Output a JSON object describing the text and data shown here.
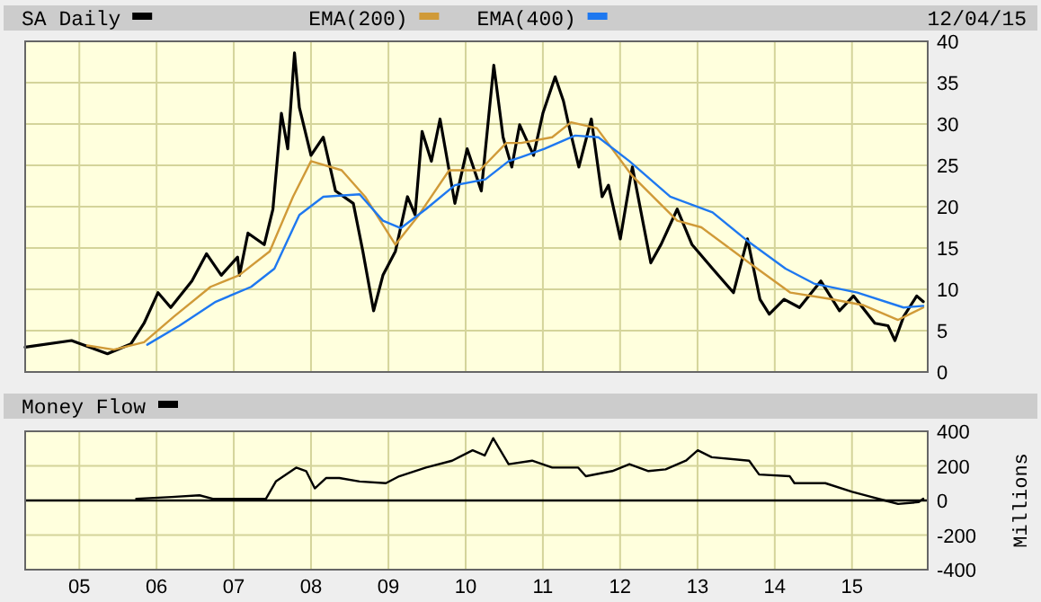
{
  "chart_data": [
    {
      "type": "line",
      "legend": "top",
      "grid": true,
      "tick_labels": "y",
      "marker": "none",
      "line_style": "solid",
      "annotations": [
        "12/04/15"
      ],
      "xlim": [
        "2004-04-20",
        "2015-12-25"
      ],
      "xticks": [
        {
          "value": "2005-01-01",
          "label": null
        },
        {
          "value": "2006-01-01",
          "label": null
        },
        {
          "value": "2007-01-01",
          "label": null
        },
        {
          "value": "2008-01-01",
          "label": null
        },
        {
          "value": "2009-01-01",
          "label": null
        },
        {
          "value": "2010-01-01",
          "label": null
        },
        {
          "value": "2011-01-01",
          "label": null
        },
        {
          "value": "2012-01-01",
          "label": null
        },
        {
          "value": "2013-01-01",
          "label": null
        },
        {
          "value": "2014-01-01",
          "label": null
        },
        {
          "value": "2015-01-01",
          "label": null
        }
      ],
      "ylim": [
        0,
        40
      ],
      "yticks": [
        0,
        5,
        10,
        15,
        20,
        25,
        30,
        35,
        40
      ],
      "series": [
        {
          "name": "SA Daily",
          "color": "#000000",
          "x": [
            "2004-04-20",
            "2004-11-25",
            "2005-05-14",
            "2005-09-02",
            "2005-11-03",
            "2006-01-08",
            "2006-03-09",
            "2006-06-17",
            "2006-08-25",
            "2006-11-03",
            "2007-01-19",
            "2007-01-28",
            "2007-03-09",
            "2007-05-25",
            "2007-07-05",
            "2007-08-14",
            "2007-09-13",
            "2007-10-15",
            "2007-11-07",
            "2008-01-01",
            "2008-02-28",
            "2008-04-26",
            "2008-07-19",
            "2008-09-02",
            "2008-10-23",
            "2008-12-06",
            "2009-02-03",
            "2009-04-01",
            "2009-05-07",
            "2009-06-09",
            "2009-07-23",
            "2009-09-02",
            "2009-11-11",
            "2010-01-08",
            "2010-03-16",
            "2010-05-14",
            "2010-06-27",
            "2010-08-07",
            "2010-09-13",
            "2010-11-18",
            "2011-01-01",
            "2011-02-28",
            "2011-04-08",
            "2011-05-03",
            "2011-06-20",
            "2011-08-18",
            "2011-10-08",
            "2011-11-07",
            "2012-01-02",
            "2012-02-28",
            "2012-05-25",
            "2012-07-12",
            "2012-09-27",
            "2012-12-06",
            "2013-03-13",
            "2013-06-20",
            "2013-08-25",
            "2013-10-23",
            "2013-12-06",
            "2014-02-14",
            "2014-04-28",
            "2014-08-07",
            "2014-11-03",
            "2015-01-08",
            "2015-04-19",
            "2015-06-20",
            "2015-07-23",
            "2015-09-02",
            "2015-11-03",
            "2015-12-04"
          ],
          "values": [
            3.0,
            3.8,
            2.2,
            3.4,
            5.9,
            9.6,
            7.8,
            11,
            14.3,
            11.7,
            13.9,
            11.7,
            16.8,
            15.4,
            19.7,
            31.3,
            27,
            38.6,
            32,
            26.2,
            28.4,
            21.9,
            20.4,
            14.6,
            7.4,
            11.7,
            14.6,
            21.2,
            19,
            29.1,
            25.5,
            30.6,
            20.4,
            27,
            21.9,
            37.1,
            28.4,
            24.8,
            29.9,
            26.2,
            31.3,
            35.7,
            32.8,
            29.9,
            24.8,
            30.6,
            21.2,
            22.6,
            16.1,
            24.8,
            13.2,
            15.4,
            19.7,
            15.4,
            12.5,
            9.6,
            16.1,
            8.8,
            7,
            8.8,
            7.8,
            11,
            7.4,
            9.2,
            5.9,
            5.6,
            3.8,
            6.7,
            9.2,
            8.5
          ]
        },
        {
          "name": "EMA(200)",
          "color": "#d09a38",
          "x": [
            "2005-02-07",
            "2005-06-13",
            "2005-11-03",
            "2006-03-24",
            "2006-09-13",
            "2007-01-26",
            "2007-06-20",
            "2007-10-08",
            "2008-01-01",
            "2008-05-25",
            "2008-09-13",
            "2009-02-03",
            "2009-05-25",
            "2009-10-15",
            "2010-03-09",
            "2010-07-12",
            "2010-09-20",
            "2011-02-14",
            "2011-05-14",
            "2011-09-13",
            "2012-02-28",
            "2012-09-27",
            "2013-01-19",
            "2013-09-02",
            "2014-03-16",
            "2014-09-27",
            "2015-02-21",
            "2015-08-07",
            "2015-12-04"
          ],
          "values": [
            3.2,
            2.7,
            3.6,
            6.7,
            10.3,
            11.7,
            14.6,
            21.2,
            25.5,
            24.4,
            21.2,
            15.4,
            19,
            24.4,
            24.4,
            27.7,
            27.7,
            28.4,
            30.2,
            29.5,
            23.7,
            18.3,
            17.5,
            13.2,
            9.6,
            8.8,
            8.1,
            6.3,
            7.8
          ]
        },
        {
          "name": "EMA(400)",
          "color": "#1e78f0",
          "x": [
            "2005-11-18",
            "2006-04-19",
            "2006-10-08",
            "2007-03-24",
            "2007-07-12",
            "2007-11-07",
            "2008-02-28",
            "2008-08-18",
            "2008-12-06",
            "2009-02-28",
            "2009-06-27",
            "2009-11-11",
            "2010-04-04",
            "2010-07-23",
            "2010-09-20",
            "2011-01-08",
            "2011-06-02",
            "2011-09-20",
            "2012-02-14",
            "2012-08-25",
            "2013-03-13",
            "2013-09-02",
            "2014-02-21",
            "2014-07-05",
            "2015-01-26",
            "2015-09-02",
            "2015-12-04"
          ],
          "values": [
            3.3,
            5.6,
            8.5,
            10.3,
            12.5,
            19,
            21.2,
            21.5,
            18.3,
            17.4,
            19.7,
            22.6,
            23.3,
            25.5,
            26,
            27,
            28.6,
            28.4,
            25.5,
            21.2,
            19.3,
            15.7,
            12.5,
            10.7,
            9.6,
            7.8,
            8
          ]
        }
      ]
    },
    {
      "type": "line",
      "legend": "top left",
      "grid": true,
      "marker": "none",
      "line_style": "solid",
      "ylabel": "Millions",
      "xlim": [
        "2004-04-20",
        "2015-12-25"
      ],
      "xticks": [
        {
          "value": "2005-01-01",
          "label": "05"
        },
        {
          "value": "2006-01-01",
          "label": "06"
        },
        {
          "value": "2007-01-01",
          "label": "07"
        },
        {
          "value": "2008-01-01",
          "label": "08"
        },
        {
          "value": "2009-01-01",
          "label": "09"
        },
        {
          "value": "2010-01-01",
          "label": "10"
        },
        {
          "value": "2011-01-01",
          "label": "11"
        },
        {
          "value": "2012-01-01",
          "label": "12"
        },
        {
          "value": "2013-01-01",
          "label": "13"
        },
        {
          "value": "2014-01-01",
          "label": "14"
        },
        {
          "value": "2015-01-01",
          "label": "15"
        }
      ],
      "ylim": [
        -400,
        400
      ],
      "yticks": [
        -400,
        -200,
        0,
        200,
        400
      ],
      "ref_lines": [
        {
          "axis": "y",
          "value": 0,
          "color": "#000000"
        }
      ],
      "series": [
        {
          "name": "Money Flow",
          "color": "#000000",
          "x": [
            "2005-09-27",
            "2006-03-13",
            "2006-07-23",
            "2006-09-24",
            "2007-06-02",
            "2007-07-19",
            "2007-10-23",
            "2007-12-09",
            "2008-01-19",
            "2008-03-13",
            "2008-05-14",
            "2008-08-18",
            "2008-12-20",
            "2009-02-21",
            "2009-06-27",
            "2009-10-29",
            "2010-02-03",
            "2010-04-01",
            "2010-05-11",
            "2010-07-23",
            "2010-11-11",
            "2011-02-14",
            "2011-06-17",
            "2011-07-23",
            "2011-11-25",
            "2012-02-14",
            "2012-05-14",
            "2012-08-03",
            "2012-11-07",
            "2013-01-02",
            "2013-03-09",
            "2013-09-02",
            "2013-10-19",
            "2014-03-13",
            "2014-04-04",
            "2014-08-28",
            "2015-01-02",
            "2015-04-04",
            "2015-06-05",
            "2015-08-07",
            "2015-11-11",
            "2015-12-04"
          ],
          "values": [
            10,
            20,
            30,
            10,
            10,
            110,
            190,
            170,
            70,
            130,
            130,
            110,
            100,
            140,
            190,
            230,
            290,
            260,
            360,
            210,
            230,
            190,
            190,
            140,
            170,
            210,
            170,
            180,
            230,
            290,
            250,
            230,
            150,
            140,
            100,
            100,
            50,
            20,
            0,
            -20,
            -10,
            10
          ]
        }
      ]
    }
  ]
}
